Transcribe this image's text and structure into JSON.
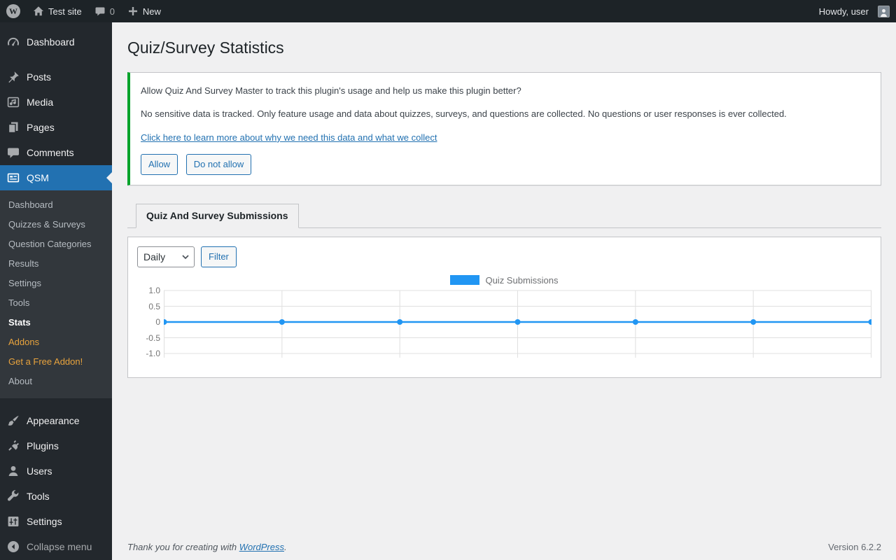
{
  "admin_bar": {
    "site_name": "Test site",
    "comments_count": "0",
    "new_label": "New",
    "howdy": "Howdy, user"
  },
  "sidebar": {
    "items": [
      {
        "label": "Dashboard"
      },
      {
        "label": "Posts"
      },
      {
        "label": "Media"
      },
      {
        "label": "Pages"
      },
      {
        "label": "Comments"
      },
      {
        "label": "QSM"
      },
      {
        "label": "Appearance"
      },
      {
        "label": "Plugins"
      },
      {
        "label": "Users"
      },
      {
        "label": "Tools"
      },
      {
        "label": "Settings"
      }
    ],
    "qsm_submenu": [
      "Dashboard",
      "Quizzes & Surveys",
      "Question Categories",
      "Results",
      "Settings",
      "Tools",
      "Stats",
      "Addons",
      "Get a Free Addon!",
      "About"
    ],
    "collapse_label": "Collapse menu"
  },
  "page": {
    "title": "Quiz/Survey Statistics"
  },
  "notice": {
    "question": "Allow Quiz And Survey Master to track this plugin's usage and help us make this plugin better?",
    "detail": "No sensitive data is tracked. Only feature usage and data about quizzes, surveys, and questions are collected. No questions or user responses is ever collected.",
    "link": "Click here to learn more about why we need this data and what we collect",
    "allow_label": "Allow",
    "deny_label": "Do not allow"
  },
  "tabs": {
    "submissions": "Quiz And Survey Submissions"
  },
  "controls": {
    "period": "Daily",
    "filter_label": "Filter"
  },
  "chart_data": {
    "type": "line",
    "title": "",
    "legend": [
      "Quiz Submissions"
    ],
    "legend_position": "top-center",
    "x": [
      1,
      2,
      3,
      4,
      5,
      6,
      7
    ],
    "x_labels": [],
    "series": [
      {
        "name": "Quiz Submissions",
        "color": "#2196f3",
        "values": [
          0,
          0,
          0,
          0,
          0,
          0,
          0
        ]
      }
    ],
    "yticks": [
      1.0,
      0.5,
      0,
      -0.5,
      -1.0
    ],
    "ytick_labels": [
      "1.0",
      "0.5",
      "0",
      "-0.5",
      "-1.0"
    ],
    "ylim": [
      -1.0,
      1.0
    ],
    "grid": true,
    "gridline_color": "#e0e0e0"
  },
  "footer": {
    "thanks_prefix": "Thank you for creating with ",
    "thanks_link": "WordPress",
    "thanks_suffix": ".",
    "version": "Version 6.2.2"
  },
  "colors": {
    "admin_accent": "#2271b1",
    "notice_green": "#00a32a",
    "chart_line": "#2196f3",
    "menu_orange": "#e8a33d",
    "dark_bar": "#1d2327",
    "sidebar_bg": "#23282d"
  }
}
